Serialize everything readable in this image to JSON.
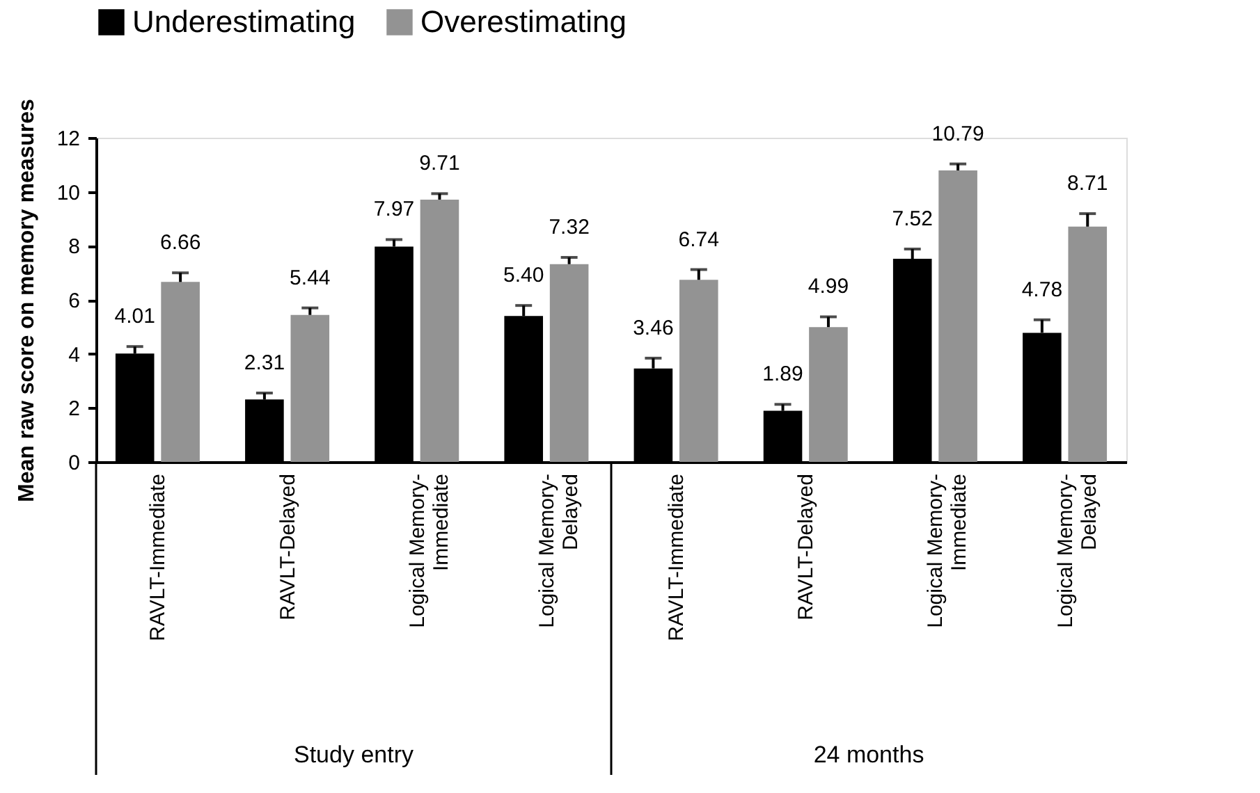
{
  "chart_data": {
    "type": "bar",
    "ylabel": "Mean raw score on memory measures",
    "categories": [
      "RAVLT-Immediate",
      "RAVLT-Delayed",
      "Logical Memory-Immediate",
      "Logical Memory-Delayed",
      "RAVLT-Immediate",
      "RAVLT-Delayed",
      "Logical Memory-Immediate",
      "Logical Memory-Delayed"
    ],
    "series": [
      {
        "name": "Underestimating",
        "color": "#000000",
        "values": [
          4.01,
          2.31,
          7.97,
          5.4,
          3.46,
          1.89,
          7.52,
          4.78
        ],
        "value_labels": [
          "4.01",
          "2.31",
          "7.97",
          "5.40",
          "3.46",
          "1.89",
          "7.52",
          "4.78"
        ],
        "errors": [
          [
            4.01,
            4.27
          ],
          [
            2.31,
            2.55
          ],
          [
            7.97,
            8.23
          ],
          [
            5.4,
            5.79
          ],
          [
            3.46,
            3.84
          ],
          [
            1.89,
            2.13
          ],
          [
            7.52,
            7.88
          ],
          [
            4.78,
            5.26
          ]
        ]
      },
      {
        "name": "Overestimating",
        "color": "#939393",
        "values": [
          6.66,
          5.44,
          9.71,
          7.32,
          6.74,
          4.99,
          10.79,
          8.71
        ],
        "value_labels": [
          "6.66",
          "5.44",
          "9.71",
          "7.32",
          "6.74",
          "4.99",
          "10.79",
          "8.71"
        ],
        "errors": [
          [
            6.66,
            7.0
          ],
          [
            5.44,
            5.7
          ],
          [
            9.71,
            9.93
          ],
          [
            7.32,
            7.57
          ],
          [
            6.74,
            7.12
          ],
          [
            4.99,
            5.37
          ],
          [
            10.79,
            11.03
          ],
          [
            8.71,
            9.19
          ]
        ]
      }
    ],
    "ylim": [
      0,
      12
    ],
    "yticks": [
      0,
      2,
      4,
      6,
      8,
      10,
      12
    ],
    "grid": false,
    "legend": "top left",
    "annotations": [
      "Study entry",
      "24 months"
    ]
  }
}
